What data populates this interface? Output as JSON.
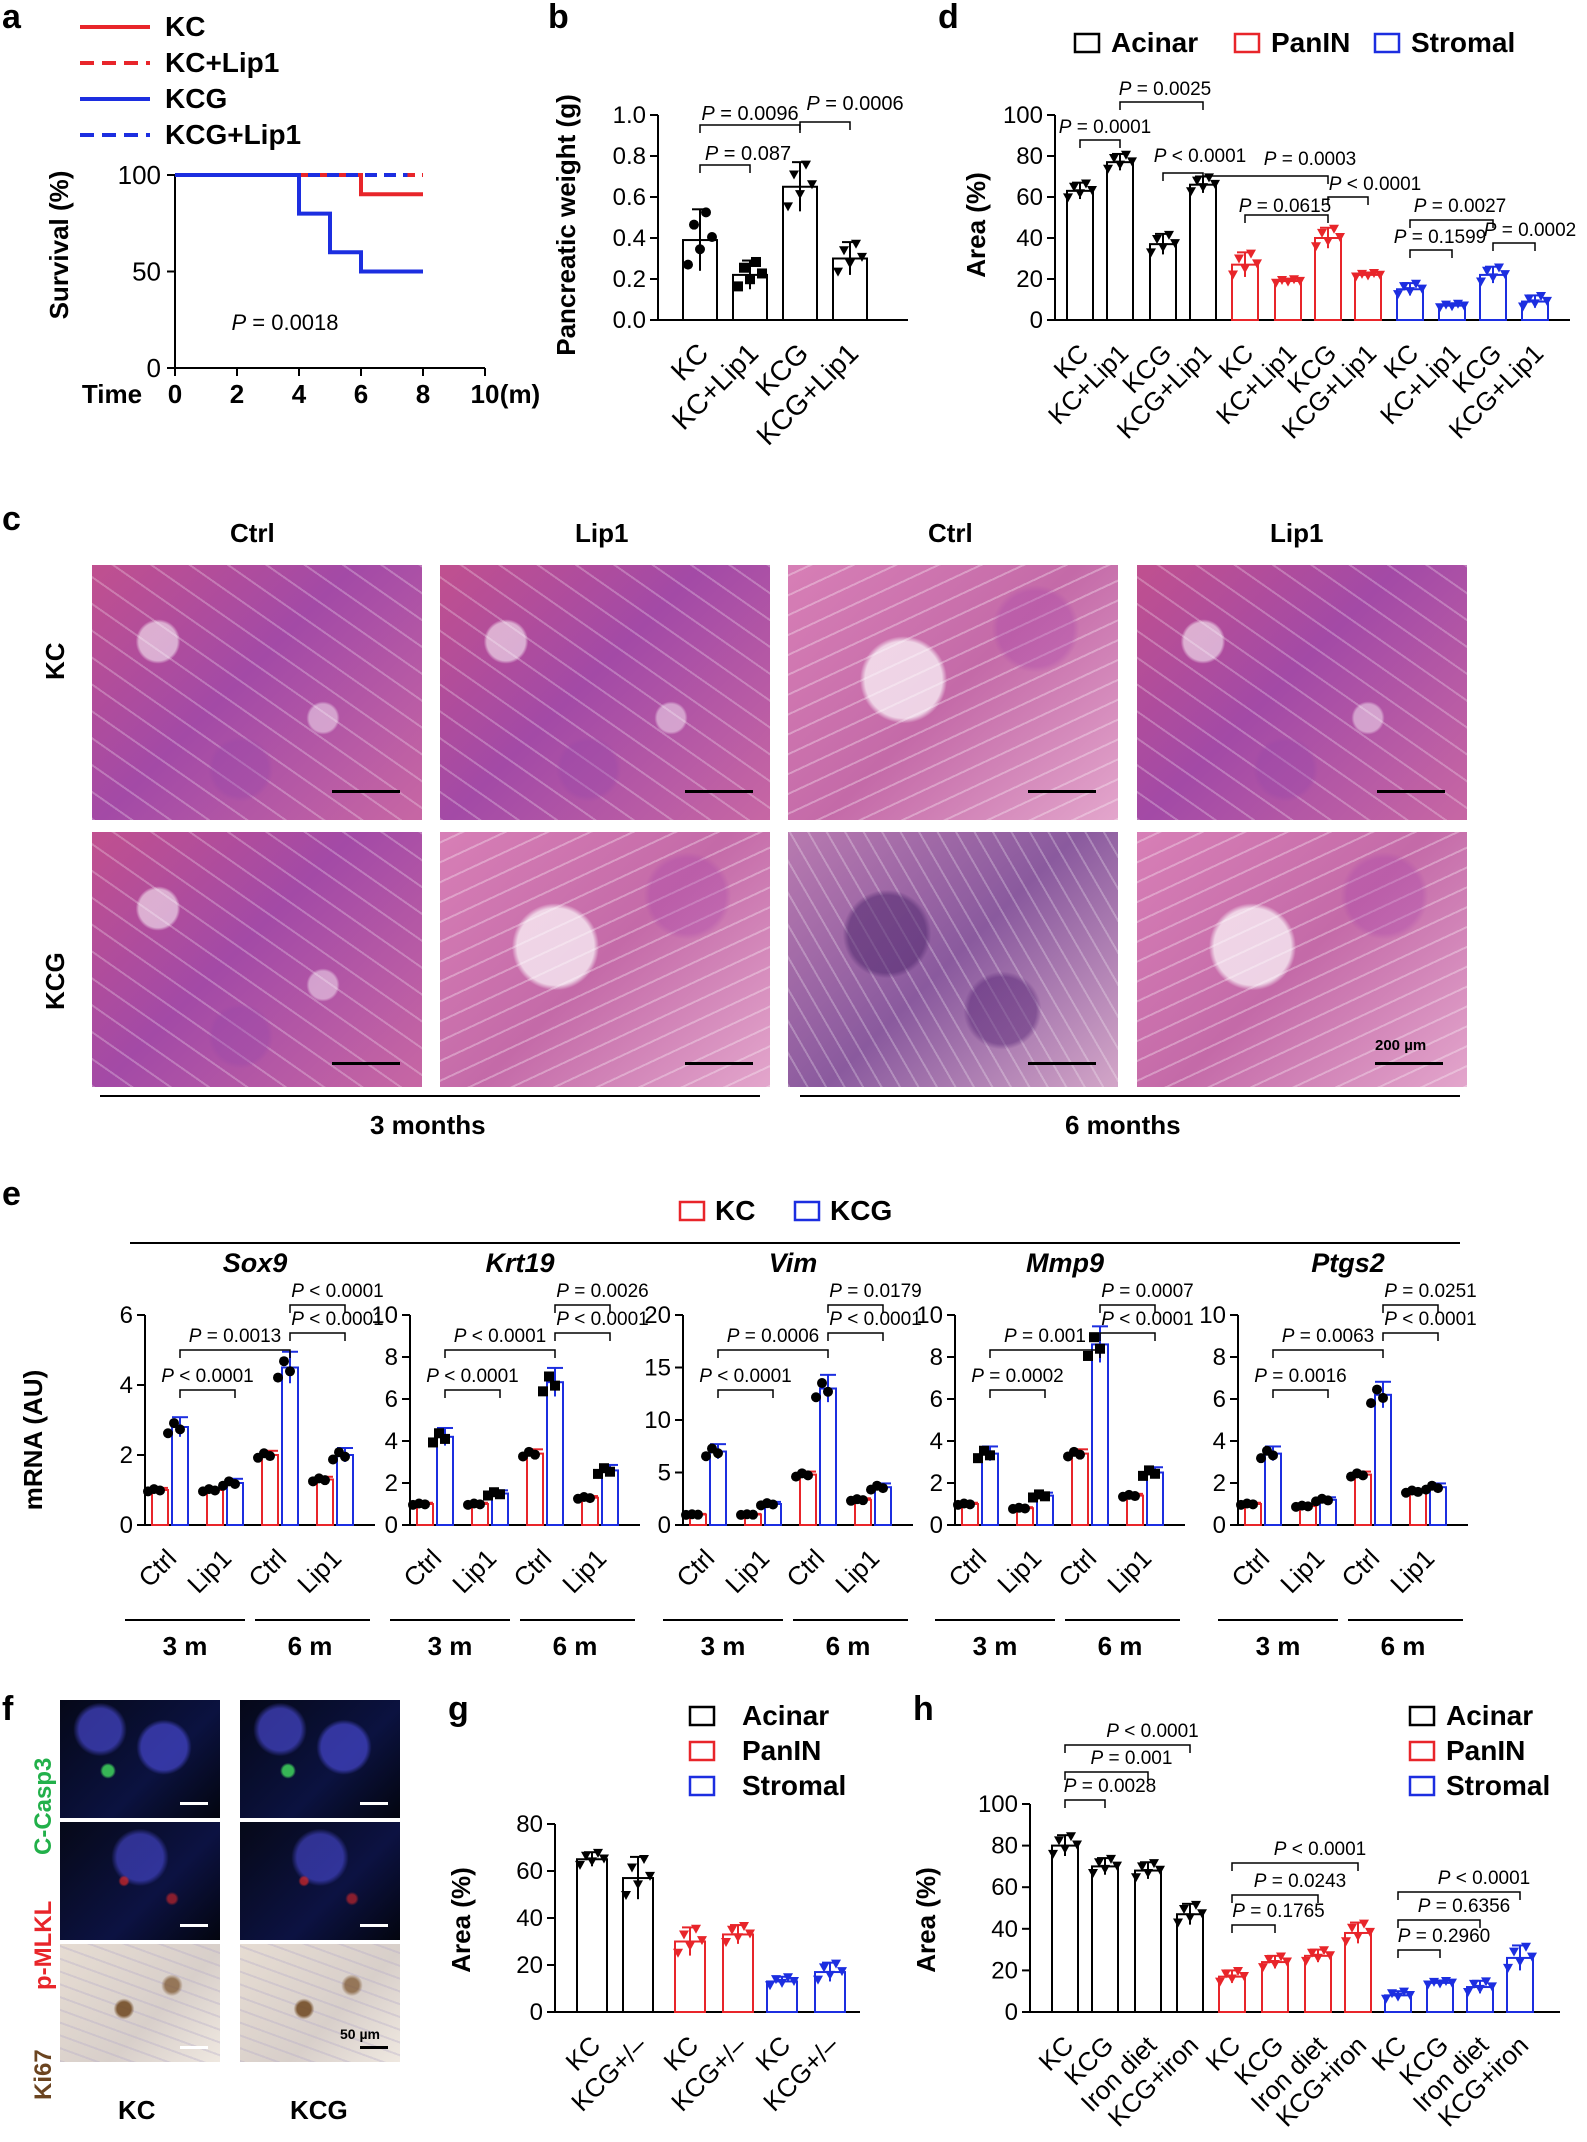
{
  "panels": {
    "a": "a",
    "b": "b",
    "c": "c",
    "d": "d",
    "e": "e",
    "f": "f",
    "g": "g",
    "h": "h"
  },
  "panel_a": {
    "legend": [
      {
        "label": "KC",
        "color": "#e8252a",
        "dash": false
      },
      {
        "label": "KC+Lip1",
        "color": "#e8252a",
        "dash": true
      },
      {
        "label": "KCG",
        "color": "#1c2ee0",
        "dash": false
      },
      {
        "label": "KCG+Lip1",
        "color": "#1c2ee0",
        "dash": true
      }
    ],
    "ylabel": "Survival (%)",
    "xlabel": "Time",
    "xunit": "(m)",
    "yticks": [
      "0",
      "50",
      "100"
    ],
    "xticks": [
      "0",
      "2",
      "4",
      "6",
      "8",
      "10"
    ],
    "p_text": "P = 0.0018"
  },
  "panel_b": {
    "ylabel": "Pancreatic weight (g)",
    "yticks": [
      "0.0",
      "0.2",
      "0.4",
      "0.6",
      "0.8",
      "1.0"
    ],
    "categories": [
      "KC",
      "KC+Lip1",
      "KCG",
      "KCG+Lip1"
    ],
    "p_values": [
      "P = 0.0096",
      "P = 0.0006",
      "P = 0.087"
    ]
  },
  "panel_c": {
    "col_labels": [
      "Ctrl",
      "Lip1",
      "Ctrl",
      "Lip1"
    ],
    "row_labels": [
      "KC",
      "KCG"
    ],
    "time_labels": [
      "3 months",
      "6 months"
    ],
    "scale": "200 µm"
  },
  "panel_d": {
    "legend": [
      {
        "label": "Acinar",
        "color": "#000000"
      },
      {
        "label": "PanIN",
        "color": "#e8252a"
      },
      {
        "label": "Stromal",
        "color": "#1c2ee0"
      }
    ],
    "ylabel": "Area (%)",
    "yticks": [
      "0",
      "20",
      "40",
      "60",
      "80",
      "100"
    ],
    "categories": [
      "KC",
      "KC+Lip1",
      "KCG",
      "KCG+Lip1",
      "KC",
      "KC+Lip1",
      "KCG",
      "KCG+Lip1",
      "KC",
      "KC+Lip1",
      "KCG",
      "KCG+Lip1"
    ],
    "p_values": [
      "P = 0.0025",
      "P = 0.0001",
      "P < 0.0001",
      "P = 0.0003",
      "P < 0.0001",
      "P = 0.0615",
      "P = 0.0027",
      "P = 0.1599",
      "P = 0.0002"
    ]
  },
  "panel_e": {
    "legend": [
      {
        "label": "KC",
        "color": "#e8252a"
      },
      {
        "label": "KCG",
        "color": "#1c2ee0"
      }
    ],
    "ylabel": "mRNA (AU)",
    "group_labels": [
      "Ctrl",
      "Lip1",
      "Ctrl",
      "Lip1"
    ],
    "time_labels": [
      "3 m",
      "6 m"
    ],
    "genes": [
      {
        "name": "Sox9",
        "yticks": [
          "0",
          "2",
          "4",
          "6"
        ],
        "p": [
          "P < 0.0001",
          "P < 0.0001",
          "P = 0.0013",
          "P < 0.0001"
        ]
      },
      {
        "name": "Krt19",
        "yticks": [
          "0",
          "2",
          "4",
          "6",
          "8",
          "10"
        ],
        "p": [
          "P = 0.0026",
          "P < 0.0001",
          "P < 0.0001",
          "P < 0.0001"
        ]
      },
      {
        "name": "Vim",
        "yticks": [
          "0",
          "5",
          "10",
          "15",
          "20"
        ],
        "p": [
          "P = 0.0179",
          "P < 0.0001",
          "P = 0.0006",
          "P < 0.0001"
        ]
      },
      {
        "name": "Mmp9",
        "yticks": [
          "0",
          "2",
          "4",
          "6",
          "8",
          "10"
        ],
        "p": [
          "P = 0.0007",
          "P < 0.0001",
          "P = 0.001",
          "P = 0.0002"
        ]
      },
      {
        "name": "Ptgs2",
        "yticks": [
          "0",
          "2",
          "4",
          "6",
          "8",
          "10"
        ],
        "p": [
          "P = 0.0251",
          "P < 0.0001",
          "P = 0.0063",
          "P = 0.0016"
        ]
      }
    ]
  },
  "panel_f": {
    "row_labels": [
      "C-Casp3",
      "p-MLKL",
      "Ki67"
    ],
    "row_colors": [
      "#22b04a",
      "#e8252a",
      "#6b4420"
    ],
    "col_labels": [
      "KC",
      "KCG"
    ],
    "scale": "50 µm"
  },
  "panel_g": {
    "legend": [
      {
        "label": "Acinar",
        "color": "#000000"
      },
      {
        "label": "PanIN",
        "color": "#e8252a"
      },
      {
        "label": "Stromal",
        "color": "#1c2ee0"
      }
    ],
    "ylabel": "Area (%)",
    "yticks": [
      "0",
      "20",
      "40",
      "60",
      "80"
    ],
    "categories": [
      "KC",
      "KCG+/–",
      "KC",
      "KCG+/–",
      "KC",
      "KCG+/–"
    ]
  },
  "panel_h": {
    "legend": [
      {
        "label": "Acinar",
        "color": "#000000"
      },
      {
        "label": "PanIN",
        "color": "#e8252a"
      },
      {
        "label": "Stromal",
        "color": "#1c2ee0"
      }
    ],
    "ylabel": "Area (%)",
    "yticks": [
      "0",
      "20",
      "40",
      "60",
      "80",
      "100"
    ],
    "categories": [
      "KC",
      "KCG",
      "Iron diet",
      "KCG+iron",
      "KC",
      "KCG",
      "Iron diet",
      "KCG+iron",
      "KC",
      "KCG",
      "Iron diet",
      "KCG+iron"
    ],
    "p_values": [
      "P < 0.0001",
      "P = 0.001",
      "P = 0.0028",
      "P < 0.0001",
      "P = 0.0243",
      "P = 0.1765",
      "P < 0.0001",
      "P = 0.6356",
      "P = 0.2960"
    ]
  },
  "chart_data": [
    {
      "type": "line",
      "panel": "a",
      "x": [
        0,
        4,
        5,
        6,
        8
      ],
      "series": [
        {
          "name": "KC",
          "x": [
            0,
            6,
            6,
            8
          ],
          "values": [
            100,
            100,
            90,
            90
          ]
        },
        {
          "name": "KC+Lip1",
          "x": [
            0,
            8
          ],
          "values": [
            100,
            100
          ]
        },
        {
          "name": "KCG",
          "x": [
            0,
            4,
            4,
            5,
            5,
            6,
            6,
            8
          ],
          "values": [
            100,
            100,
            80,
            80,
            60,
            60,
            50,
            50
          ]
        },
        {
          "name": "KCG+Lip1",
          "x": [
            0,
            7.5
          ],
          "values": [
            100,
            100
          ]
        }
      ],
      "ylim": [
        0,
        100
      ],
      "xlim": [
        0,
        10
      ],
      "xlabel": "Time",
      "ylabel": "Survival (%)"
    },
    {
      "type": "bar",
      "panel": "b",
      "categories": [
        "KC",
        "KC+Lip1",
        "KCG",
        "KCG+Lip1"
      ],
      "values": [
        0.39,
        0.22,
        0.65,
        0.3
      ],
      "errors": [
        0.15,
        0.07,
        0.12,
        0.08
      ],
      "ylim": [
        0,
        1.0
      ],
      "ylabel": "Pancreatic weight (g)"
    },
    {
      "type": "bar",
      "panel": "d",
      "categories": [
        "KC",
        "KC+Lip1",
        "KCG",
        "KCG+Lip1",
        "KC",
        "KC+Lip1",
        "KCG",
        "KCG+Lip1",
        "KC",
        "KC+Lip1",
        "KCG",
        "KCG+Lip1"
      ],
      "values": [
        63,
        77,
        37,
        66,
        27,
        19,
        40,
        22,
        15,
        7,
        22,
        9
      ],
      "errors": [
        4,
        4,
        5,
        4,
        6,
        1,
        5,
        1,
        3,
        1,
        4,
        3
      ],
      "series_groups": [
        "Acinar",
        "Acinar",
        "Acinar",
        "Acinar",
        "PanIN",
        "PanIN",
        "PanIN",
        "PanIN",
        "Stromal",
        "Stromal",
        "Stromal",
        "Stromal"
      ],
      "ylim": [
        0,
        100
      ],
      "ylabel": "Area (%)"
    },
    {
      "type": "bar",
      "panel": "e",
      "genes": [
        "Sox9",
        "Krt19",
        "Vim",
        "Mmp9",
        "Ptgs2"
      ],
      "categories": [
        "3 m Ctrl",
        "3 m Lip1",
        "6 m Ctrl",
        "6 m Lip1"
      ],
      "series": [
        {
          "name": "KC",
          "values": {
            "Sox9": [
              1.0,
              1.0,
              2.0,
              1.3
            ],
            "Krt19": [
              1.0,
              1.0,
              3.4,
              1.3
            ],
            "Vim": [
              1.0,
              1.0,
              4.8,
              2.4
            ],
            "Mmp9": [
              1.0,
              0.8,
              3.4,
              1.4
            ],
            "Ptgs2": [
              1.0,
              0.9,
              2.4,
              1.6
            ]
          }
        },
        {
          "name": "KCG",
          "values": {
            "Sox9": [
              2.8,
              1.2,
              4.5,
              2.0
            ],
            "Krt19": [
              4.2,
              1.5,
              6.8,
              2.6
            ],
            "Vim": [
              7.0,
              2.0,
              13.0,
              3.6
            ],
            "Mmp9": [
              3.4,
              1.4,
              8.6,
              2.5
            ],
            "Ptgs2": [
              3.4,
              1.2,
              6.2,
              1.8
            ]
          }
        }
      ],
      "ylim": {
        "Sox9": [
          0,
          6
        ],
        "Krt19": [
          0,
          10
        ],
        "Vim": [
          0,
          20
        ],
        "Mmp9": [
          0,
          10
        ],
        "Ptgs2": [
          0,
          10
        ]
      },
      "ylabel": "mRNA (AU)"
    },
    {
      "type": "bar",
      "panel": "g",
      "categories": [
        "KC",
        "KCG+/–",
        "KC",
        "KCG+/–",
        "KC",
        "KCG+/–"
      ],
      "values": [
        65,
        57,
        30,
        33,
        13,
        17
      ],
      "errors": [
        3,
        9,
        6,
        4,
        2,
        4
      ],
      "series_groups": [
        "Acinar",
        "Acinar",
        "PanIN",
        "PanIN",
        "Stromal",
        "Stromal"
      ],
      "ylim": [
        0,
        80
      ],
      "ylabel": "Area (%)"
    },
    {
      "type": "bar",
      "panel": "h",
      "categories": [
        "KC",
        "KCG",
        "Iron diet",
        "KCG+iron",
        "KC",
        "KCG",
        "Iron diet",
        "KCG+iron",
        "KC",
        "KCG",
        "Iron diet",
        "KCG+iron"
      ],
      "values": [
        80,
        70,
        68,
        47,
        17,
        24,
        27,
        38,
        8,
        14,
        12,
        26
      ],
      "errors": [
        5,
        4,
        4,
        5,
        3,
        3,
        3,
        5,
        2,
        1,
        3,
        6
      ],
      "series_groups": [
        "Acinar",
        "Acinar",
        "Acinar",
        "Acinar",
        "PanIN",
        "PanIN",
        "PanIN",
        "PanIN",
        "Stromal",
        "Stromal",
        "Stromal",
        "Stromal"
      ],
      "ylim": [
        0,
        100
      ],
      "ylabel": "Area (%)"
    }
  ]
}
